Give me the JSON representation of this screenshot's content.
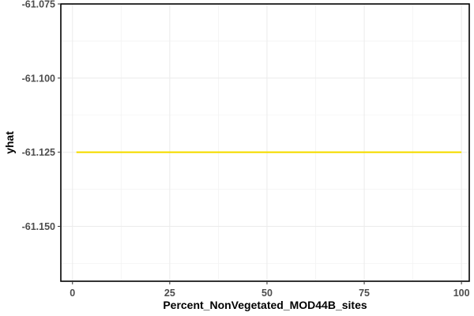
{
  "chart_data": {
    "type": "line",
    "title": "",
    "xlabel": "Percent_NonVegetated_MOD44B_sites",
    "ylabel": "yhat",
    "xlim": [
      -3,
      102
    ],
    "ylim": [
      -61.1685,
      -61.075
    ],
    "x_ticks": [
      0,
      25,
      50,
      75,
      100
    ],
    "x_tick_labels": [
      "0",
      "25",
      "50",
      "75",
      "100"
    ],
    "y_ticks": [
      -61.075,
      -61.1,
      -61.125,
      -61.15
    ],
    "y_tick_labels": [
      "-61.075",
      "-61.100",
      "-61.125",
      "-61.150"
    ],
    "grid": true,
    "series": [
      {
        "color": "#f5dc00",
        "x": [
          1,
          10,
          20,
          30,
          40,
          50,
          60,
          70,
          80,
          90,
          100
        ],
        "y": [
          -61.125,
          -61.125,
          -61.125,
          -61.125,
          -61.125,
          -61.125,
          -61.125,
          -61.125,
          -61.125,
          -61.125,
          -61.125
        ]
      }
    ]
  }
}
